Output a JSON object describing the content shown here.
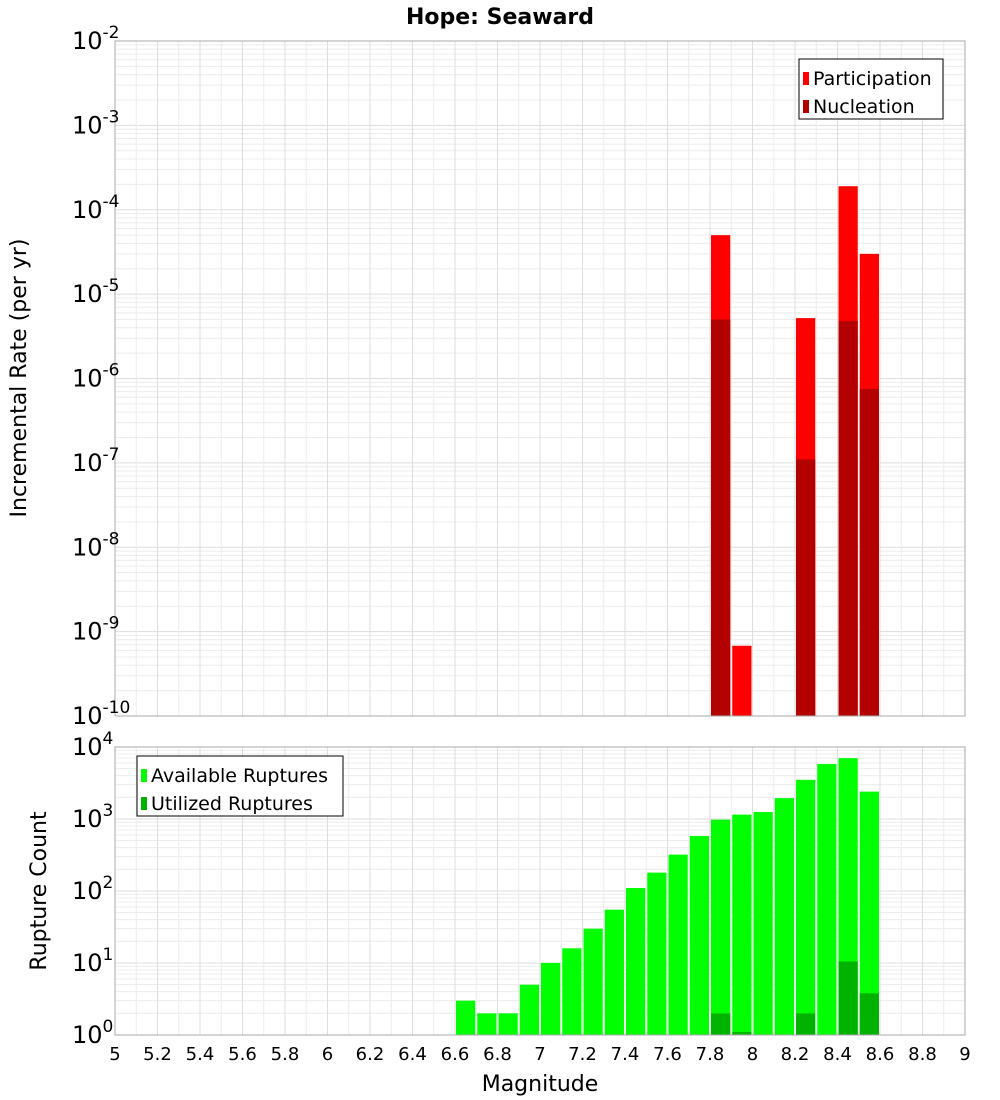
{
  "chart_data": [
    {
      "type": "bar",
      "title": "Hope: Seaward",
      "ylabel": "Incremental Rate (per yr)",
      "xlabel": "",
      "scale": "log",
      "xlim": [
        5,
        9
      ],
      "ylim_exponents": [
        -10,
        -2
      ],
      "bin_width": 0.1,
      "legend_position": "top-right",
      "grid": true,
      "x": [
        7.85,
        7.95,
        8.25,
        8.45,
        8.55
      ],
      "series": [
        {
          "name": "Participation",
          "color": "#ff0000",
          "values": [
            5e-05,
            6.8e-10,
            5.2e-06,
            0.00019,
            3e-05
          ]
        },
        {
          "name": "Nucleation",
          "color": "#b30000",
          "values": [
            5e-06,
            null,
            1.1e-07,
            4.8e-06,
            7.5e-07
          ]
        }
      ],
      "tick_labels": [
        {
          "base": "10",
          "exp": "-10"
        },
        {
          "base": "10",
          "exp": "-9"
        },
        {
          "base": "10",
          "exp": "-8"
        },
        {
          "base": "10",
          "exp": "-7"
        },
        {
          "base": "10",
          "exp": "-6"
        },
        {
          "base": "10",
          "exp": "-5"
        },
        {
          "base": "10",
          "exp": "-4"
        },
        {
          "base": "10",
          "exp": "-3"
        },
        {
          "base": "10",
          "exp": "-2"
        }
      ]
    },
    {
      "type": "bar",
      "title": "",
      "ylabel": "Rupture Count",
      "xlabel": "Magnitude",
      "scale": "log",
      "xlim": [
        5,
        9
      ],
      "ylim_exponents": [
        0,
        4
      ],
      "bin_width": 0.1,
      "legend_position": "top-left",
      "grid": true,
      "x": [
        6.65,
        6.75,
        6.85,
        6.95,
        7.05,
        7.15,
        7.25,
        7.35,
        7.45,
        7.55,
        7.65,
        7.75,
        7.85,
        7.95,
        8.05,
        8.15,
        8.25,
        8.35,
        8.45,
        8.55
      ],
      "series": [
        {
          "name": "Available Ruptures",
          "color": "#00ff00",
          "values": [
            3,
            2,
            2,
            5,
            10,
            16,
            30,
            55,
            110,
            180,
            320,
            580,
            980,
            1150,
            1250,
            1950,
            3500,
            5800,
            7000,
            2400
          ]
        },
        {
          "name": "Utilized Ruptures",
          "color": "#00b300",
          "values": [
            null,
            null,
            null,
            null,
            null,
            null,
            null,
            null,
            null,
            null,
            null,
            null,
            2,
            1.1,
            null,
            null,
            2,
            null,
            10.5,
            3.8
          ]
        }
      ],
      "tick_labels": [
        {
          "base": "10",
          "exp": "0"
        },
        {
          "base": "10",
          "exp": "1"
        },
        {
          "base": "10",
          "exp": "2"
        },
        {
          "base": "10",
          "exp": "3"
        },
        {
          "base": "10",
          "exp": "4"
        }
      ],
      "x_tick_labels": [
        "5",
        "5.2",
        "5.4",
        "5.6",
        "5.8",
        "6",
        "6.2",
        "6.4",
        "6.6",
        "6.8",
        "7",
        "7.2",
        "7.4",
        "7.6",
        "7.8",
        "8",
        "8.2",
        "8.4",
        "8.6",
        "8.8",
        "9"
      ]
    }
  ]
}
